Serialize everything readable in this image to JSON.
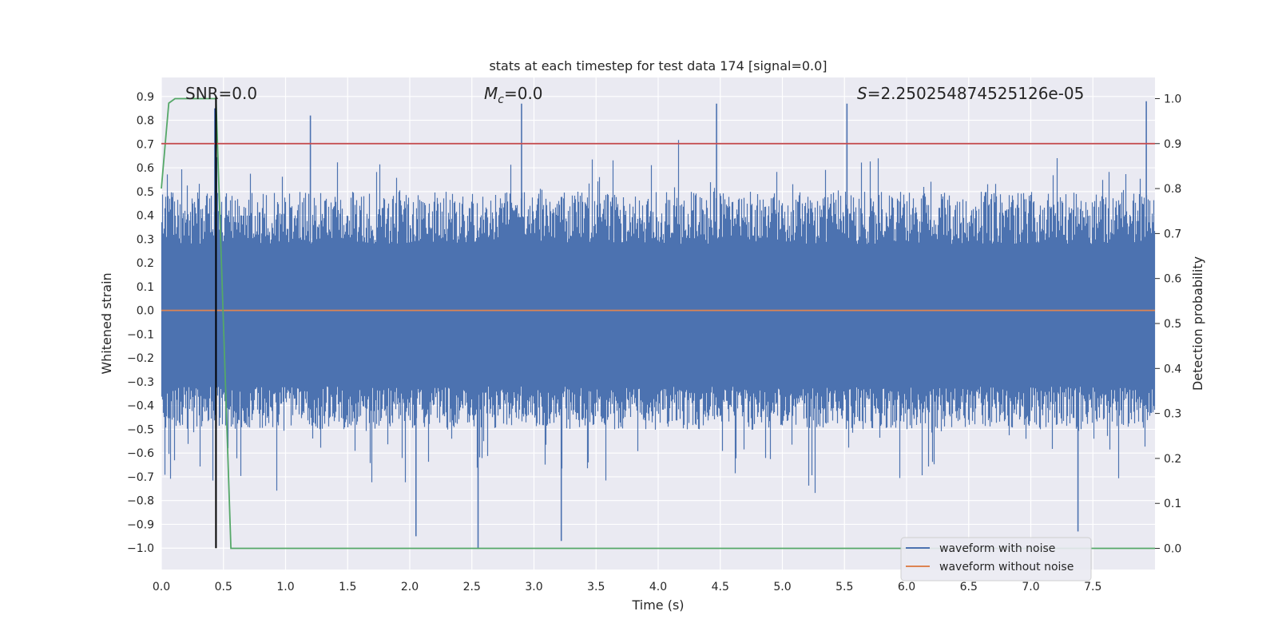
{
  "chart_data": {
    "type": "line",
    "title": "stats at each timestep for test data 174 [signal=0.0]",
    "xlabel": "Time (s)",
    "ylabel": "Whitened strain",
    "y2label": "Detection probability",
    "xlim": [
      0.0,
      8.0
    ],
    "ylim": [
      -1.09,
      0.98
    ],
    "y2lim": [
      -0.047,
      1.047
    ],
    "xticks": [
      "0.0",
      "0.5",
      "1.0",
      "1.5",
      "2.0",
      "2.5",
      "3.0",
      "3.5",
      "4.0",
      "4.5",
      "5.0",
      "5.5",
      "6.0",
      "6.5",
      "7.0",
      "7.5"
    ],
    "xtick_values": [
      0.0,
      0.5,
      1.0,
      1.5,
      2.0,
      2.5,
      3.0,
      3.5,
      4.0,
      4.5,
      5.0,
      5.5,
      6.0,
      6.5,
      7.0,
      7.5
    ],
    "yticks": [
      "0.9",
      "0.8",
      "0.7",
      "0.6",
      "0.5",
      "0.4",
      "0.3",
      "0.2",
      "0.1",
      "0.0",
      "−0.1",
      "−0.2",
      "−0.3",
      "−0.4",
      "−0.5",
      "−0.6",
      "−0.7",
      "−0.8",
      "−0.9",
      "−1.0"
    ],
    "ytick_values": [
      0.9,
      0.8,
      0.7,
      0.6,
      0.5,
      0.4,
      0.3,
      0.2,
      0.1,
      0.0,
      -0.1,
      -0.2,
      -0.3,
      -0.4,
      -0.5,
      -0.6,
      -0.7,
      -0.8,
      -0.9,
      -1.0
    ],
    "y2ticks": [
      "1.0",
      "0.9",
      "0.8",
      "0.7",
      "0.6",
      "0.5",
      "0.4",
      "0.3",
      "0.2",
      "0.1",
      "0.0"
    ],
    "y2tick_values": [
      1.0,
      0.9,
      0.8,
      0.7,
      0.6,
      0.5,
      0.4,
      0.3,
      0.2,
      0.1,
      0.0
    ],
    "annotations": {
      "snr": "SNR=0.0",
      "mc": "=0.0",
      "mc_symbol": "M",
      "mc_sub": "c",
      "s_symbol": "S",
      "s": "=2.250254874525126e-05"
    },
    "series": [
      {
        "name": "waveform with noise",
        "color": "#4c72b0",
        "kind": "noise",
        "approx_range": [
          -1.0,
          0.87
        ],
        "peaks": [
          {
            "x": 0.43,
            "y": 0.85
          },
          {
            "x": 1.2,
            "y": 0.82
          },
          {
            "x": 2.9,
            "y": 0.87
          },
          {
            "x": 4.47,
            "y": 0.87
          },
          {
            "x": 5.52,
            "y": 0.87
          },
          {
            "x": 7.93,
            "y": 0.88
          },
          {
            "x": 2.55,
            "y": -1.0
          },
          {
            "x": 3.22,
            "y": -0.97
          },
          {
            "x": 2.05,
            "y": -0.95
          },
          {
            "x": 7.38,
            "y": -0.93
          }
        ]
      },
      {
        "name": "waveform without noise",
        "color": "#dd8452",
        "x": [
          0.0,
          8.0
        ],
        "y": [
          0.0,
          0.0
        ]
      },
      {
        "name": "detection probability",
        "color": "#55a868",
        "axis": "right",
        "x": [
          0.0,
          0.06,
          0.11,
          0.44,
          0.56,
          8.0
        ],
        "y": [
          0.8,
          0.99,
          1.0,
          1.0,
          0.0,
          0.0
        ]
      },
      {
        "name": "threshold",
        "color": "#c44e52",
        "axis": "right",
        "x": [
          0.0,
          8.0
        ],
        "y": [
          0.9,
          0.9
        ]
      },
      {
        "name": "marker",
        "color": "#000000",
        "x": [
          0.44,
          0.44
        ],
        "y": [
          -1.0,
          0.9
        ]
      }
    ],
    "legend": {
      "placement": "lower-right",
      "entries": [
        "waveform with noise",
        "waveform without noise"
      ]
    },
    "grid": true
  }
}
